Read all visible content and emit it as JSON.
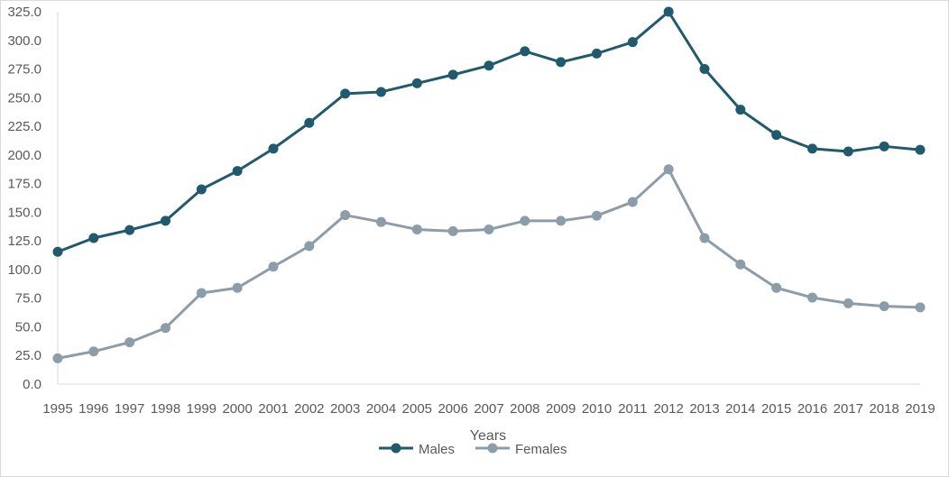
{
  "chart_data": {
    "type": "line",
    "title": "",
    "xlabel": "Years",
    "ylabel": "",
    "ylim": [
      0,
      325
    ],
    "y_ticks": [
      "0.0",
      "25.0",
      "50.0",
      "75.0",
      "100.0",
      "125.0",
      "150.0",
      "175.0",
      "200.0",
      "225.0",
      "250.0",
      "275.0",
      "300.0",
      "325.0"
    ],
    "categories": [
      "1995",
      "1996",
      "1997",
      "1998",
      "1999",
      "2000",
      "2001",
      "2002",
      "2003",
      "2004",
      "2005",
      "2006",
      "2007",
      "2008",
      "2009",
      "2010",
      "2011",
      "2012",
      "2013",
      "2014",
      "2015",
      "2016",
      "2017",
      "2018",
      "2019"
    ],
    "grid": false,
    "legend_position": "bottom",
    "series": [
      {
        "name": "Males",
        "color": "#1f5a6e",
        "values": [
          115.5,
          127.5,
          134.5,
          142.5,
          170.0,
          186.0,
          205.5,
          228.0,
          253.5,
          255.0,
          262.5,
          270.0,
          278.0,
          290.5,
          281.0,
          288.5,
          298.5,
          325.0,
          275.0,
          239.5,
          217.5,
          205.5,
          203.0,
          207.5,
          204.5
        ]
      },
      {
        "name": "Females",
        "color": "#8c9daa",
        "values": [
          22.5,
          28.5,
          36.5,
          49.0,
          79.5,
          84.0,
          102.5,
          120.5,
          147.5,
          141.5,
          135.0,
          133.5,
          135.0,
          142.5,
          142.5,
          147.0,
          159.0,
          187.5,
          127.5,
          104.5,
          84.0,
          75.5,
          70.5,
          68.0,
          67.0
        ]
      }
    ]
  }
}
